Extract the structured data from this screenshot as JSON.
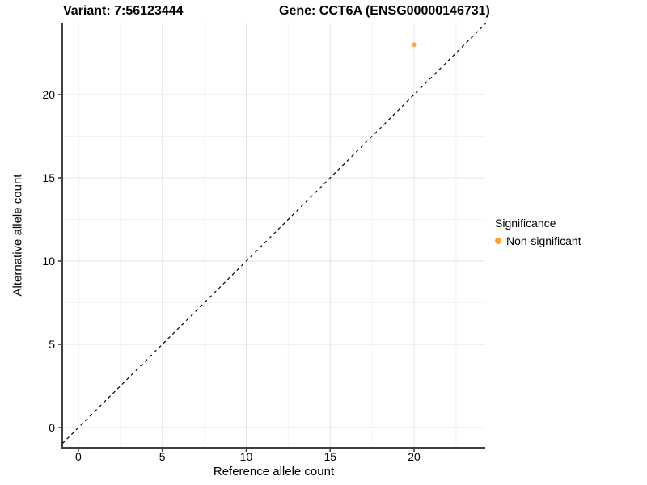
{
  "title": {
    "variant_label": "Variant: 7:56123444",
    "gene_label": "Gene: CCT6A (ENSG00000146731)"
  },
  "chart_data": {
    "type": "scatter",
    "title": "Variant: 7:56123444  /  Gene: CCT6A (ENSG00000146731)",
    "xlabel": "Reference allele count",
    "ylabel": "Alternative allele count",
    "xlim": [
      -0.96,
      24.24
    ],
    "ylim": [
      -1.21,
      24.27
    ],
    "x_major_ticks": [
      0,
      5,
      10,
      15,
      20
    ],
    "y_major_ticks": [
      0,
      5,
      10,
      15,
      20
    ],
    "x_minor_ticks": [
      2.5,
      7.5,
      12.5,
      17.5,
      22.5
    ],
    "y_minor_ticks": [
      2.5,
      7.5,
      12.5,
      17.5,
      22.5
    ],
    "grid": true,
    "identity_line": {
      "style": "dashed",
      "x1": -0.96,
      "y1": -0.96,
      "x2": 24.27,
      "y2": 24.27,
      "color": "#000000"
    },
    "series": [
      {
        "name": "Non-significant",
        "color": "#FFA02F",
        "points": [
          {
            "x": 20,
            "y": 23
          }
        ]
      }
    ],
    "legend": {
      "position": "right",
      "title": "Significance",
      "entries": [
        {
          "label": "Non-significant",
          "color": "#FFA02F"
        }
      ]
    }
  },
  "colors": {
    "accent_orange": "#FFA02F",
    "axis_line": "#404040",
    "major_grid": "#E6E6E6",
    "minor_grid": "#F2F2F2",
    "background": "#FFFFFF"
  }
}
